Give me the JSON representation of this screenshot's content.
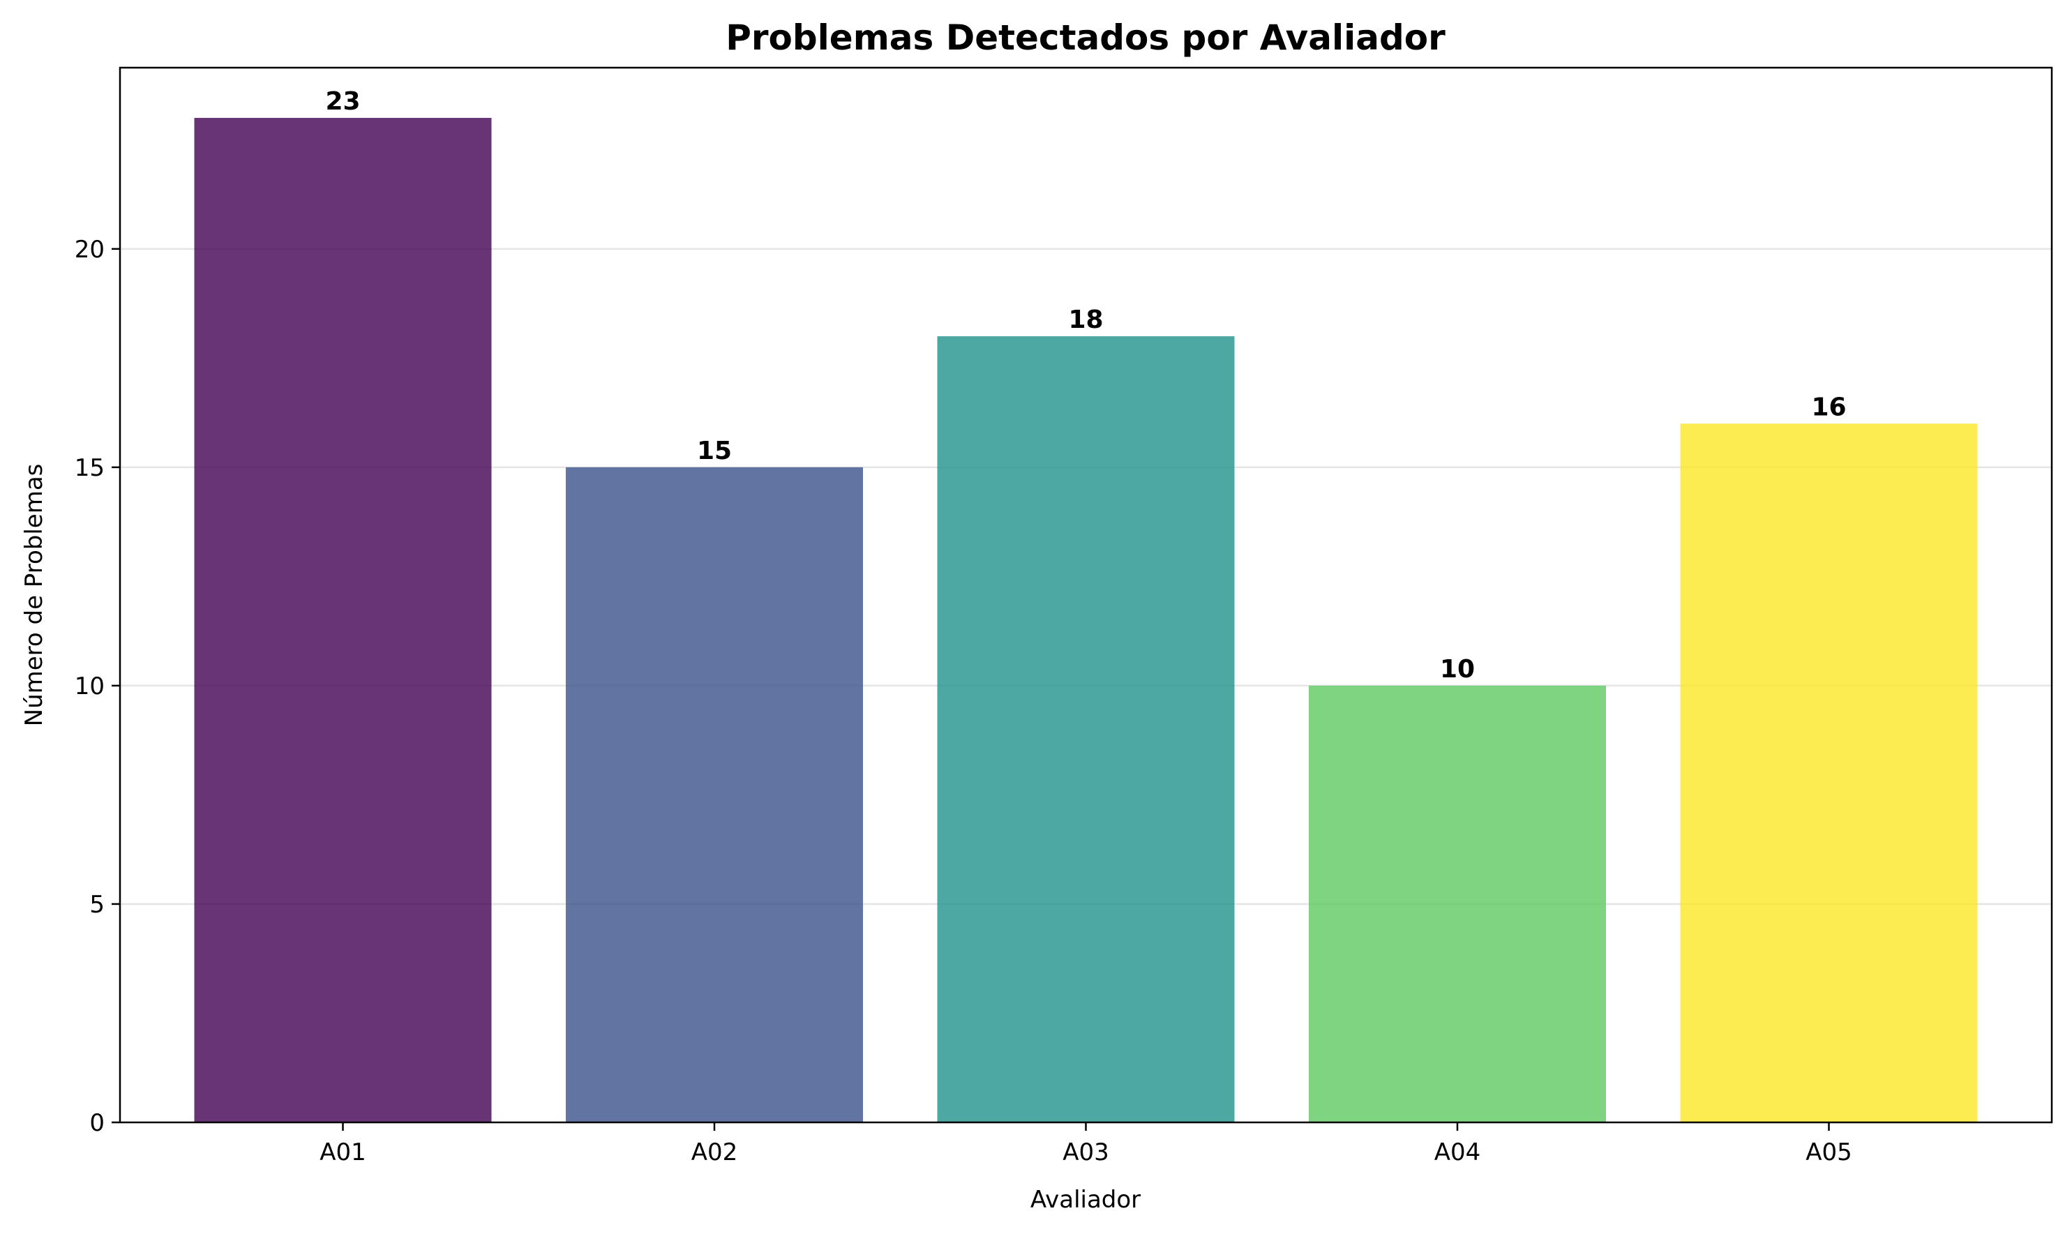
{
  "chart_data": {
    "type": "bar",
    "title": "Problemas Detectados por Avaliador",
    "xlabel": "Avaliador",
    "ylabel": "Número de Problemas",
    "categories": [
      "A01",
      "A02",
      "A03",
      "A04",
      "A05"
    ],
    "values": [
      23,
      15,
      18,
      10,
      16
    ],
    "colors": [
      "#440154",
      "#3b528b",
      "#21918c",
      "#5ec962",
      "#fde725"
    ],
    "bar_opacity": 0.8,
    "ylim": [
      0,
      24.15
    ],
    "yticks": [
      0,
      5,
      10,
      15,
      20
    ],
    "grid": "y",
    "data_labels": [
      "23",
      "15",
      "18",
      "10",
      "16"
    ]
  }
}
